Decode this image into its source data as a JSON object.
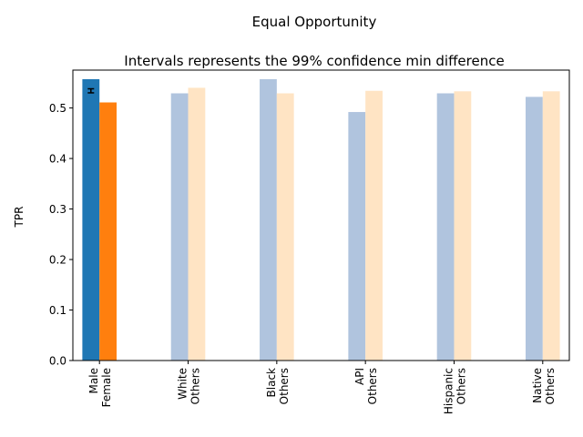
{
  "chart_data": {
    "type": "bar",
    "title": "Equal Opportunity",
    "subtitle": "Intervals represents the 99% confidence min difference",
    "ylabel": "TPR",
    "xlabel": "",
    "ylim": [
      0,
      0.575
    ],
    "yticks": [
      "0.0",
      "0.1",
      "0.2",
      "0.3",
      "0.4",
      "0.5"
    ],
    "grid": false,
    "groups": [
      {
        "labels": [
          "Male",
          "Female"
        ],
        "values": [
          0.557,
          0.511
        ],
        "colors": [
          "#1f77b4",
          "#ff7f0e"
        ],
        "interval": {
          "center": 0.534,
          "half_width": 0.004
        }
      },
      {
        "labels": [
          "White",
          "Others"
        ],
        "values": [
          0.529,
          0.54
        ],
        "colors": [
          "#b0c4de",
          "#ffe4c4"
        ]
      },
      {
        "labels": [
          "Black",
          "Others"
        ],
        "values": [
          0.557,
          0.529
        ],
        "colors": [
          "#b0c4de",
          "#ffe4c4"
        ]
      },
      {
        "labels": [
          "API",
          "Others"
        ],
        "values": [
          0.492,
          0.534
        ],
        "colors": [
          "#b0c4de",
          "#ffe4c4"
        ]
      },
      {
        "labels": [
          "Hispanic",
          "Others"
        ],
        "values": [
          0.529,
          0.533
        ],
        "colors": [
          "#b0c4de",
          "#ffe4c4"
        ]
      },
      {
        "labels": [
          "Native",
          "Others"
        ],
        "values": [
          0.522,
          0.533
        ],
        "colors": [
          "#b0c4de",
          "#ffe4c4"
        ]
      }
    ]
  }
}
